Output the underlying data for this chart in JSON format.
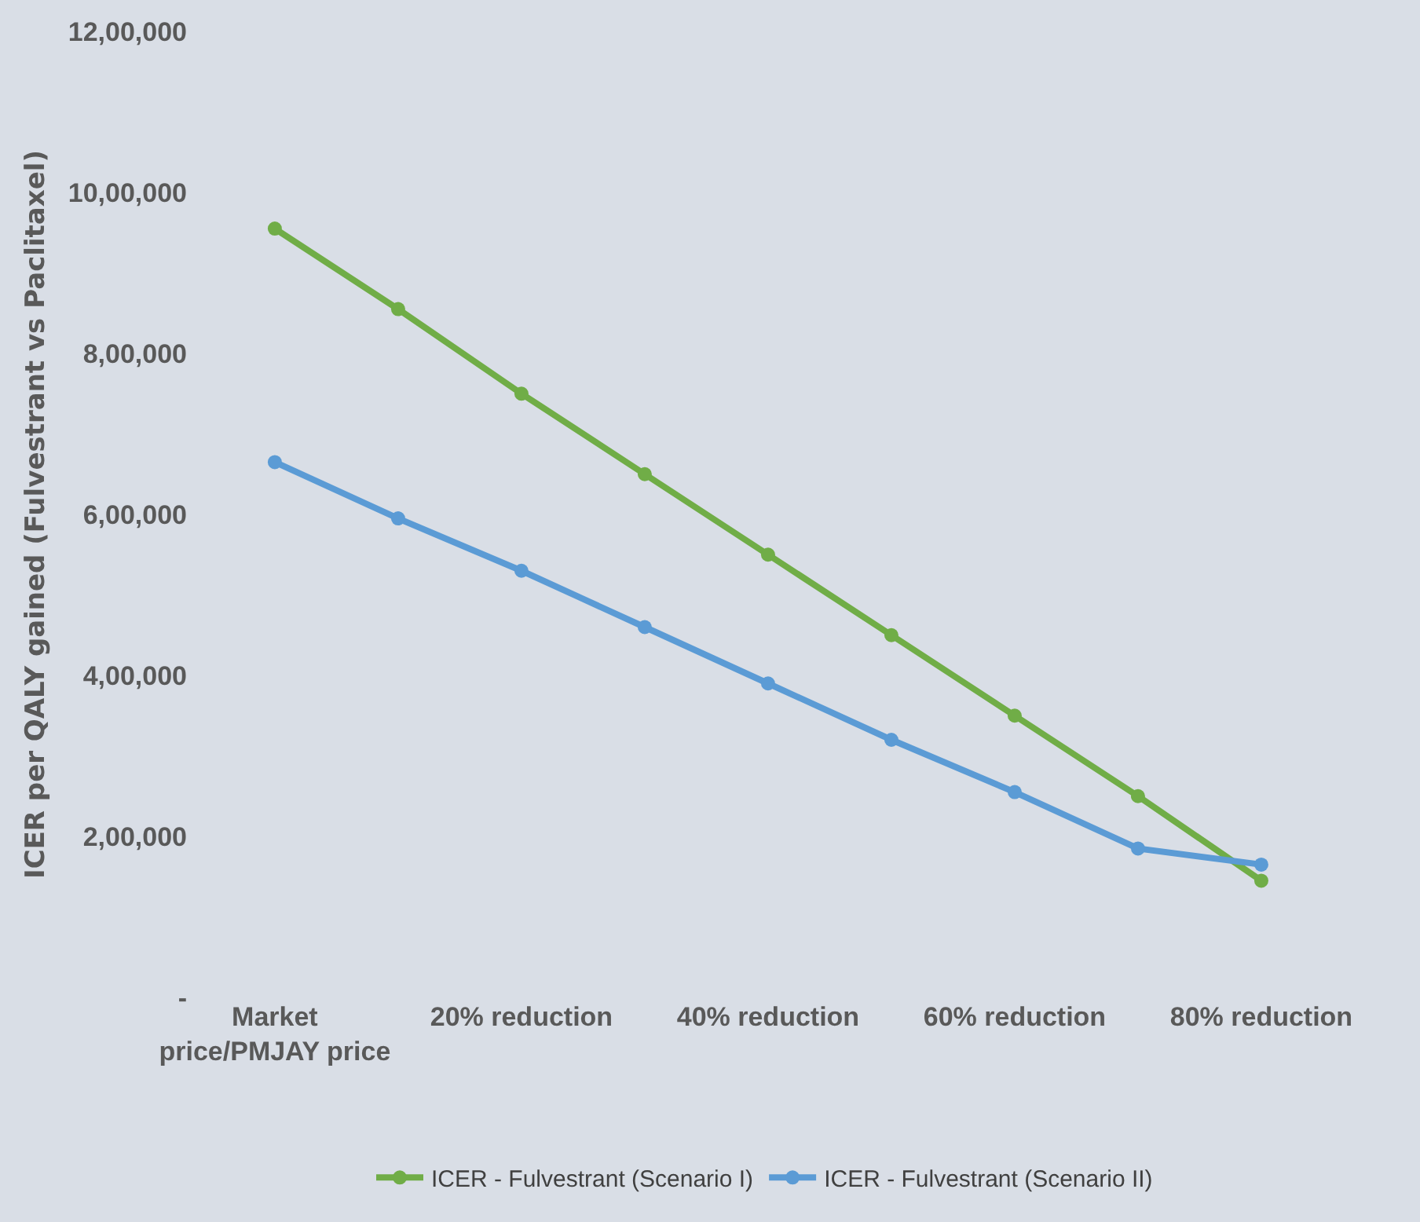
{
  "chart_data": {
    "type": "line",
    "ylabel": "ICER per QALY gained (Fulvestrant vs Paclitaxel)",
    "categories": [
      "Market price/PMJAY price",
      null,
      "20% reduction",
      null,
      "40% reduction",
      null,
      "60% reduction",
      null,
      "80% reduction"
    ],
    "series": [
      {
        "name": "ICER - Fulvestrant (Scenario I)",
        "color": "#70ad47",
        "values": [
          955000,
          855000,
          750000,
          650000,
          550000,
          450000,
          350000,
          250000,
          145000
        ]
      },
      {
        "name": "ICER - Fulvestrant (Scenario II)",
        "color": "#5b9bd5",
        "values": [
          665000,
          595000,
          530000,
          460000,
          390000,
          320000,
          255000,
          185000,
          165000
        ]
      }
    ],
    "ylim": [
      0,
      1200000
    ],
    "yticks": [
      {
        "value": 0,
        "label": "-"
      },
      {
        "value": 200000,
        "label": "2,00,000"
      },
      {
        "value": 400000,
        "label": "4,00,000"
      },
      {
        "value": 600000,
        "label": "6,00,000"
      },
      {
        "value": 800000,
        "label": "8,00,000"
      },
      {
        "value": 1000000,
        "label": "10,00,000"
      },
      {
        "value": 1200000,
        "label": "12,00,000"
      }
    ],
    "grid": false,
    "legend": "bottom",
    "marker": "circle",
    "line_style": "solid"
  }
}
